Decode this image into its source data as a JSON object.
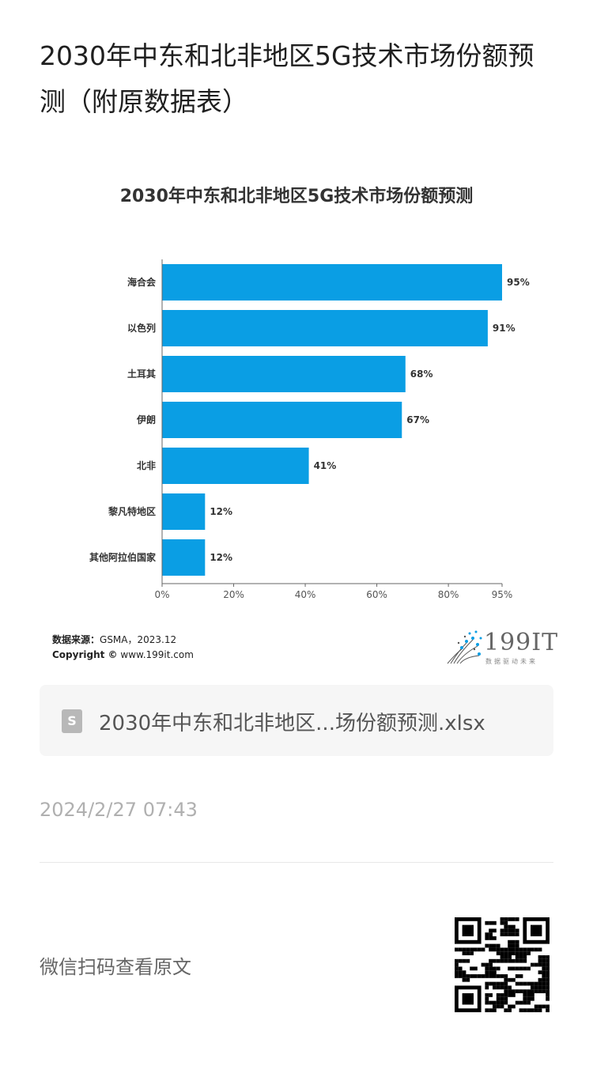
{
  "page": {
    "title": "2030年中东和北非地区5G技术市场份额预测（附原数据表）"
  },
  "chart_data": {
    "type": "bar",
    "orientation": "horizontal",
    "title": "2030年中东和北非地区5G技术市场份额预测",
    "categories": [
      "海合会",
      "以色列",
      "土耳其",
      "伊朗",
      "北非",
      "黎凡特地区",
      "其他阿拉伯国家"
    ],
    "values": [
      95,
      91,
      68,
      67,
      41,
      12,
      12
    ],
    "value_labels": [
      "95%",
      "91%",
      "68%",
      "67%",
      "41%",
      "12%",
      "12%"
    ],
    "xticks": [
      0,
      20,
      40,
      60,
      80,
      95
    ],
    "xtick_labels": [
      "0%",
      "20%",
      "40%",
      "60%",
      "80%",
      "95%"
    ],
    "xlim": [
      0,
      95
    ],
    "bar_color": "#0a9ee4",
    "grid": false,
    "legend": "none"
  },
  "source": {
    "label": "数据来源：",
    "text": "GSMA，2023.12",
    "copyright_label": "Copyright ©",
    "copyright_text": "www.199it.com"
  },
  "logo": {
    "name": "199IT",
    "tagline": "数据驱动未来"
  },
  "attachment": {
    "icon": "spreadsheet-icon",
    "icon_letter": "S",
    "filename": "2030年中东和北非地区...场份额预测.xlsx"
  },
  "meta": {
    "timestamp": "2024/2/27 07:43"
  },
  "footer": {
    "qr_label": "微信扫码查看原文"
  }
}
